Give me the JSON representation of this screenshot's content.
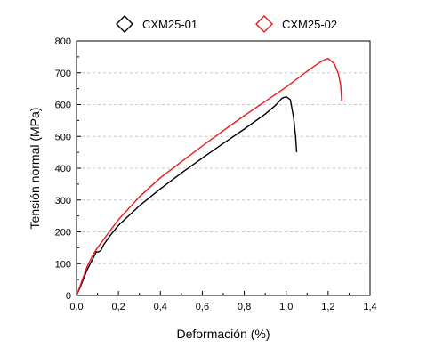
{
  "chart_data": {
    "type": "line",
    "xlabel": "Deformación (%)",
    "ylabel": "Tensión normal (MPa)",
    "xlim": [
      0.0,
      1.4
    ],
    "ylim": [
      0,
      800
    ],
    "x_ticks": [
      "0,0",
      "0,2",
      "0,4",
      "0,6",
      "0,8",
      "1,0",
      "1,2",
      "1,4"
    ],
    "y_ticks": [
      "0",
      "100",
      "200",
      "300",
      "400",
      "500",
      "600",
      "700",
      "800"
    ],
    "grid": "horizontal dashed",
    "legend_position": "top",
    "series": [
      {
        "name": "CXM25-01",
        "color": "#000000",
        "marker": "diamond",
        "points": [
          [
            0.0,
            0
          ],
          [
            0.02,
            30
          ],
          [
            0.05,
            80
          ],
          [
            0.08,
            118
          ],
          [
            0.095,
            138
          ],
          [
            0.1,
            136
          ],
          [
            0.115,
            140
          ],
          [
            0.13,
            160
          ],
          [
            0.16,
            188
          ],
          [
            0.2,
            220
          ],
          [
            0.3,
            282
          ],
          [
            0.4,
            335
          ],
          [
            0.5,
            385
          ],
          [
            0.6,
            432
          ],
          [
            0.7,
            478
          ],
          [
            0.8,
            523
          ],
          [
            0.9,
            570
          ],
          [
            0.95,
            598
          ],
          [
            0.98,
            620
          ],
          [
            1.0,
            625
          ],
          [
            1.02,
            615
          ],
          [
            1.035,
            560
          ],
          [
            1.045,
            500
          ],
          [
            1.05,
            450
          ]
        ]
      },
      {
        "name": "CXM25-02",
        "color": "#e8191f",
        "marker": "diamond",
        "points": [
          [
            0.0,
            0
          ],
          [
            0.02,
            35
          ],
          [
            0.05,
            90
          ],
          [
            0.08,
            130
          ],
          [
            0.1,
            150
          ],
          [
            0.15,
            195
          ],
          [
            0.2,
            238
          ],
          [
            0.3,
            310
          ],
          [
            0.4,
            370
          ],
          [
            0.5,
            420
          ],
          [
            0.6,
            470
          ],
          [
            0.7,
            518
          ],
          [
            0.8,
            565
          ],
          [
            0.9,
            610
          ],
          [
            1.0,
            655
          ],
          [
            1.1,
            705
          ],
          [
            1.15,
            728
          ],
          [
            1.18,
            740
          ],
          [
            1.2,
            745
          ],
          [
            1.23,
            728
          ],
          [
            1.25,
            695
          ],
          [
            1.26,
            660
          ],
          [
            1.265,
            610
          ]
        ]
      }
    ]
  }
}
